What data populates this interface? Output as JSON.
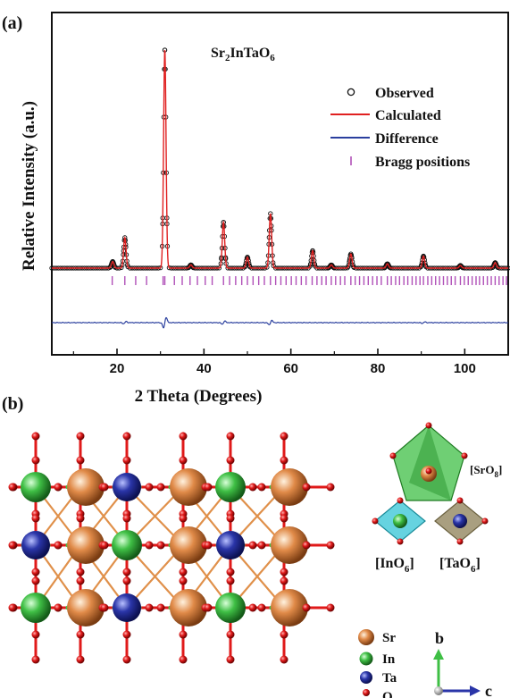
{
  "panel_a_label": "(a)",
  "panel_b_label": "(b)",
  "compound": {
    "base": "Sr",
    "s1": "2",
    "mid": "InTaO",
    "s2": "6"
  },
  "chart_data": {
    "type": "line",
    "title": "Sr2InTaO6",
    "xlabel": "2 Theta (Degrees)",
    "ylabel": "Relative Intensity (a.u.)",
    "xlim": [
      5,
      110
    ],
    "xticks": [
      20,
      40,
      60,
      80,
      100
    ],
    "grid": false,
    "legend_position": "top-right",
    "legend": [
      "Observed",
      "Calculated",
      "Difference",
      "Bragg positions"
    ],
    "colors": {
      "observed": "#111111",
      "calculated": "#e02020",
      "difference": "#2a3f9e",
      "bragg": "#b050b8"
    },
    "background_intensity": 1.0,
    "peaks": [
      {
        "x": 19.0,
        "y": 3
      },
      {
        "x": 21.8,
        "y": 14
      },
      {
        "x": 31.0,
        "y": 100
      },
      {
        "x": 37.0,
        "y": 1.5
      },
      {
        "x": 44.5,
        "y": 21
      },
      {
        "x": 50.0,
        "y": 5
      },
      {
        "x": 55.3,
        "y": 25
      },
      {
        "x": 65.0,
        "y": 8
      },
      {
        "x": 69.3,
        "y": 1.5
      },
      {
        "x": 73.8,
        "y": 6.5
      },
      {
        "x": 82.2,
        "y": 2
      },
      {
        "x": 90.5,
        "y": 5.5
      },
      {
        "x": 99.0,
        "y": 1.2
      },
      {
        "x": 107.0,
        "y": 2.5
      }
    ],
    "bragg_positions": [
      18.9,
      21.8,
      24.3,
      26.8,
      30.6,
      31.0,
      33.2,
      35.0,
      36.8,
      38.5,
      40.3,
      41.9,
      44.5,
      45.9,
      47.3,
      48.7,
      50.0,
      51.3,
      52.6,
      53.9,
      55.3,
      56.5,
      57.7,
      58.9,
      60.1,
      61.2,
      62.4,
      63.5,
      64.9,
      66.0,
      67.1,
      68.1,
      69.3,
      70.3,
      71.4,
      72.4,
      73.8,
      74.8,
      75.8,
      76.8,
      77.8,
      78.8,
      79.8,
      80.8,
      82.2,
      83.1,
      84.1,
      85.0,
      86.0,
      86.9,
      87.9,
      88.8,
      89.7,
      90.5,
      91.5,
      92.4,
      93.3,
      94.2,
      95.1,
      96.0,
      96.9,
      97.8,
      99.0,
      99.9,
      100.8,
      101.7,
      102.6,
      103.4,
      104.3,
      105.2,
      106.1,
      107.0,
      107.9,
      108.8,
      109.6
    ],
    "difference_features": [
      {
        "x": 21.8,
        "a": 1.2
      },
      {
        "x": 31.0,
        "a": 6
      },
      {
        "x": 44.5,
        "a": 1.8
      },
      {
        "x": 55.3,
        "a": 2.5
      },
      {
        "x": 90.5,
        "a": 0.8
      }
    ]
  },
  "structure": {
    "legend": [
      "Sr",
      "In",
      "Ta",
      "O"
    ],
    "colors": {
      "Sr": "#e08a48",
      "In": "#3fbf45",
      "Ta": "#2a35a8",
      "O": "#e01a1a"
    },
    "axes_labels": [
      "b",
      "c"
    ],
    "polyhedra_labels": [
      {
        "open": "[SrO",
        "sub": "8",
        "close": "]"
      },
      {
        "open": "[InO",
        "sub": "6",
        "close": "]"
      },
      {
        "open": "[TaO",
        "sub": "6",
        "close": "]"
      }
    ]
  }
}
